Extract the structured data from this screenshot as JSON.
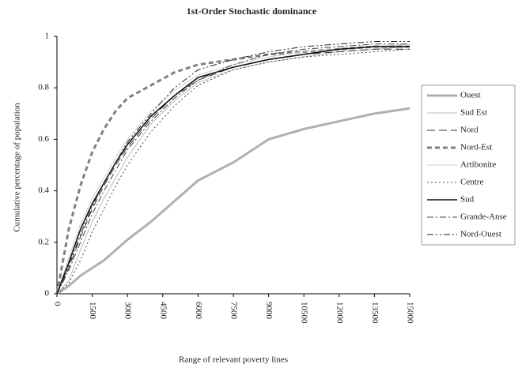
{
  "chart_data": {
    "type": "line",
    "title": "1st-Order Stochastic dominance",
    "xlabel": "Range of relevant poverty lines",
    "ylabel": "Cumulative percentage of population",
    "x": [
      0,
      500,
      1000,
      1500,
      2000,
      2500,
      3000,
      4000,
      5000,
      6000,
      7500,
      9000,
      10500,
      12000,
      13500,
      15000
    ],
    "xlim": [
      0,
      15000
    ],
    "xticks": [
      0,
      1500,
      3000,
      4500,
      6000,
      7500,
      9000,
      10500,
      12000,
      13500,
      15000
    ],
    "ylim": [
      0,
      1
    ],
    "yticks": [
      0,
      0.2,
      0.4,
      0.6,
      0.8,
      1
    ],
    "grid": false,
    "legend": "right",
    "series": [
      {
        "name": "Ouest",
        "color": "#b0b0b0",
        "width": 3,
        "dash": "",
        "values": [
          0,
          0.03,
          0.07,
          0.1,
          0.13,
          0.17,
          0.21,
          0.28,
          0.36,
          0.44,
          0.51,
          0.6,
          0.64,
          0.67,
          0.7,
          0.72
        ]
      },
      {
        "name": "Sud Est",
        "color": "#bbbbbb",
        "width": 1,
        "dash": "",
        "values": [
          0,
          0.05,
          0.17,
          0.28,
          0.37,
          0.45,
          0.53,
          0.66,
          0.75,
          0.82,
          0.87,
          0.9,
          0.92,
          0.94,
          0.95,
          0.96
        ]
      },
      {
        "name": "Nord",
        "color": "#333333",
        "width": 1,
        "dash": "10,5",
        "values": [
          0,
          0.1,
          0.22,
          0.33,
          0.42,
          0.5,
          0.57,
          0.68,
          0.77,
          0.83,
          0.88,
          0.91,
          0.93,
          0.94,
          0.95,
          0.95
        ]
      },
      {
        "name": "Nord-Est",
        "color": "#808080",
        "width": 3,
        "dash": "6,4",
        "values": [
          0,
          0.25,
          0.42,
          0.55,
          0.64,
          0.71,
          0.76,
          0.81,
          0.86,
          0.89,
          0.91,
          0.93,
          0.94,
          0.95,
          0.96,
          0.96
        ]
      },
      {
        "name": "Artibonite",
        "color": "#d0d0d0",
        "width": 1,
        "dash": "",
        "values": [
          0,
          0.14,
          0.27,
          0.37,
          0.45,
          0.53,
          0.6,
          0.71,
          0.79,
          0.85,
          0.89,
          0.92,
          0.94,
          0.95,
          0.96,
          0.97
        ]
      },
      {
        "name": "Centre",
        "color": "#444444",
        "width": 1,
        "dash": "2,3",
        "values": [
          0,
          0.04,
          0.13,
          0.24,
          0.33,
          0.42,
          0.5,
          0.63,
          0.73,
          0.81,
          0.87,
          0.9,
          0.92,
          0.93,
          0.94,
          0.95
        ]
      },
      {
        "name": "Sud",
        "color": "#111111",
        "width": 1.6,
        "dash": "",
        "values": [
          0,
          0.12,
          0.25,
          0.35,
          0.43,
          0.51,
          0.58,
          0.69,
          0.77,
          0.84,
          0.88,
          0.91,
          0.93,
          0.95,
          0.96,
          0.96
        ]
      },
      {
        "name": "Grande-Anse",
        "color": "#444444",
        "width": 1,
        "dash": "8,3,2,3",
        "values": [
          0,
          0.09,
          0.2,
          0.31,
          0.4,
          0.48,
          0.56,
          0.67,
          0.76,
          0.83,
          0.89,
          0.93,
          0.95,
          0.96,
          0.97,
          0.97
        ]
      },
      {
        "name": "Nord-Ouest",
        "color": "#222222",
        "width": 1,
        "dash": "8,3,2,3,2,3",
        "values": [
          0,
          0.11,
          0.23,
          0.34,
          0.43,
          0.51,
          0.59,
          0.7,
          0.8,
          0.87,
          0.91,
          0.94,
          0.96,
          0.97,
          0.98,
          0.98
        ]
      }
    ]
  }
}
